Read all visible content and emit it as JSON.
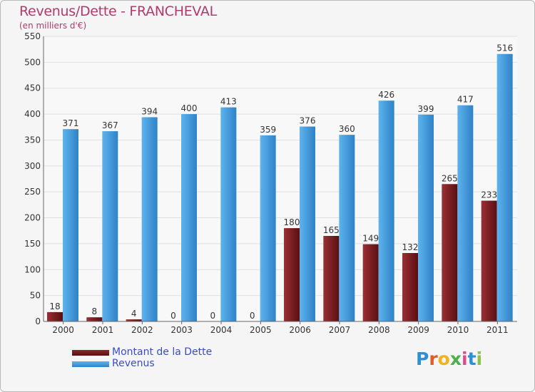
{
  "chart_data": {
    "type": "bar",
    "title": "Revenus/Dette - FRANCHEVAL",
    "subtitle": "(en milliers d'€)",
    "categories": [
      "2000",
      "2001",
      "2002",
      "2003",
      "2004",
      "2005",
      "2006",
      "2007",
      "2008",
      "2009",
      "2010",
      "2011"
    ],
    "series": [
      {
        "name": "Montant de la Dette",
        "color": "#7a1f22",
        "values": [
          18,
          8,
          4,
          0,
          0,
          0,
          180,
          165,
          149,
          132,
          265,
          233
        ]
      },
      {
        "name": "Revenus",
        "color": "#4aa3e3",
        "values": [
          371,
          367,
          394,
          400,
          413,
          359,
          376,
          360,
          426,
          399,
          417,
          516
        ]
      }
    ],
    "ylim": [
      0,
      550
    ],
    "yticks": [
      0,
      50,
      100,
      150,
      200,
      250,
      300,
      350,
      400,
      450,
      500,
      550
    ],
    "grid": true,
    "legend_position": "bottom-left"
  },
  "logo": {
    "text": [
      "P",
      "r",
      "o",
      "x",
      "i",
      "t",
      "i"
    ],
    "colors": [
      "#2e8fd6",
      "#e05a2a",
      "#f2b21c",
      "#49b04a",
      "#e04a8a",
      "#2e8fd6",
      "#8bc34a"
    ]
  }
}
